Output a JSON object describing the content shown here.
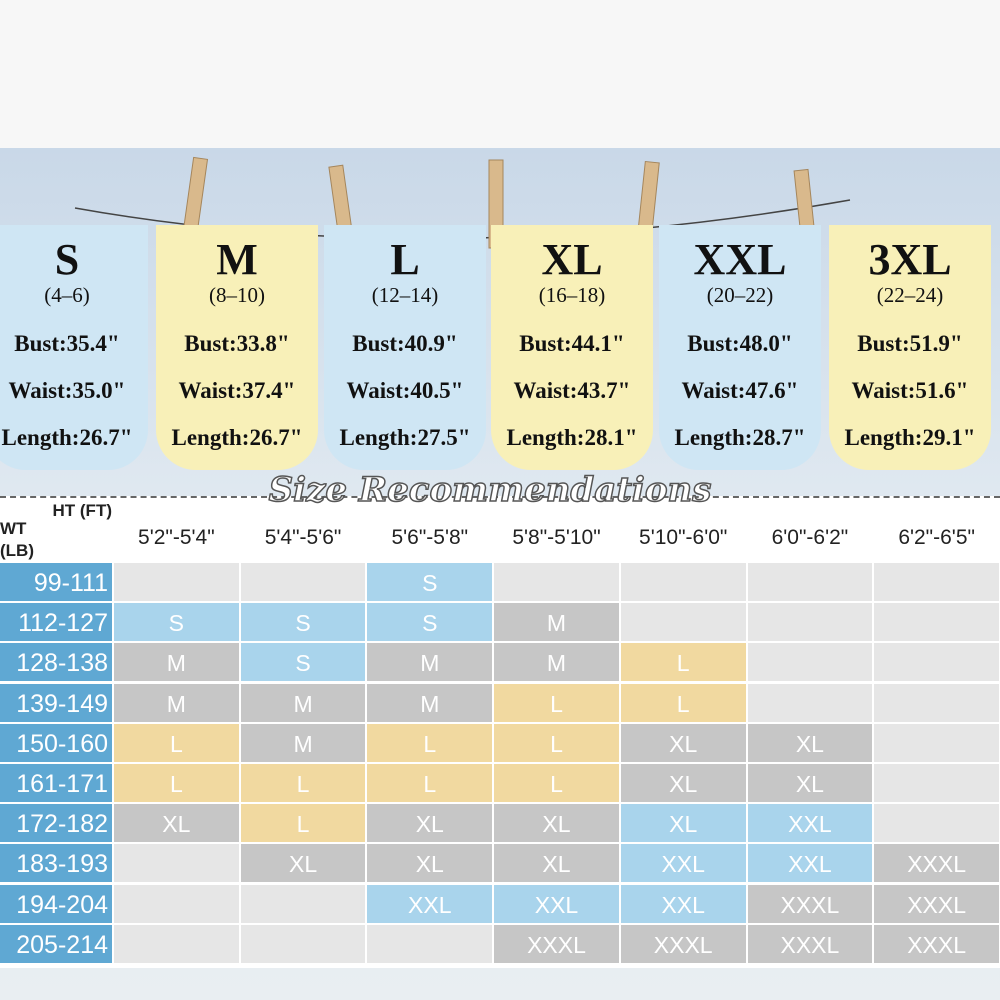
{
  "sizes": [
    {
      "label": "S",
      "range": "(4–6)",
      "bust": "Bust:35.4\"",
      "waist": "Waist:35.0\"",
      "length": "Length:26.7\"",
      "color": "#cfe6f4"
    },
    {
      "label": "M",
      "range": "(8–10)",
      "bust": "Bust:33.8\"",
      "waist": "Waist:37.4\"",
      "length": "Length:26.7\"",
      "color": "#f8f0b8"
    },
    {
      "label": "L",
      "range": "(12–14)",
      "bust": "Bust:40.9\"",
      "waist": "Waist:40.5\"",
      "length": "Length:27.5\"",
      "color": "#cfe6f4"
    },
    {
      "label": "XL",
      "range": "(16–18)",
      "bust": "Bust:44.1\"",
      "waist": "Waist:43.7\"",
      "length": "Length:28.1\"",
      "color": "#f8f0b8"
    },
    {
      "label": "XXL",
      "range": "(20–22)",
      "bust": "Bust:48.0\"",
      "waist": "Waist:47.6\"",
      "length": "Length:28.7\"",
      "color": "#cfe6f4"
    },
    {
      "label": "3XL",
      "range": "(22–24)",
      "bust": "Bust:51.9\"",
      "waist": "Waist:51.6\"",
      "length": "Length:29.1\"",
      "color": "#f8f0b8"
    }
  ],
  "table": {
    "title": "Size Recommendations",
    "height_header": "HT (FT)",
    "weight_header": "WT (LB)",
    "columns": [
      "5'2\"-5'4\"",
      "5'4\"-5'6\"",
      "5'6\"-5'8\"",
      "5'8\"-5'10\"",
      "5'10\"-6'0\"",
      "6'0\"-6'2\"",
      "6'2\"-6'5\""
    ],
    "rows": [
      {
        "weight": "99-111",
        "cells": [
          null,
          null,
          {
            "text": "S",
            "color": "#a9d4ec"
          },
          null,
          null,
          null,
          null
        ]
      },
      {
        "weight": "112-127",
        "cells": [
          {
            "text": "S",
            "color": "#a9d4ec"
          },
          {
            "text": "S",
            "color": "#a9d4ec"
          },
          {
            "text": "S",
            "color": "#a9d4ec"
          },
          {
            "text": "M",
            "color": "#c6c6c6"
          },
          null,
          null,
          null
        ]
      },
      {
        "weight": "128-138",
        "cells": [
          {
            "text": "M",
            "color": "#c6c6c6"
          },
          {
            "text": "S",
            "color": "#a9d4ec"
          },
          {
            "text": "M",
            "color": "#c6c6c6"
          },
          {
            "text": "M",
            "color": "#c6c6c6"
          },
          {
            "text": "L",
            "color": "#f1d9a0"
          },
          null,
          null
        ]
      },
      {
        "weight": "139-149",
        "cells": [
          {
            "text": "M",
            "color": "#c6c6c6"
          },
          {
            "text": "M",
            "color": "#c6c6c6"
          },
          {
            "text": "M",
            "color": "#c6c6c6"
          },
          {
            "text": "L",
            "color": "#f1d9a0"
          },
          {
            "text": "L",
            "color": "#f1d9a0"
          },
          null,
          null
        ]
      },
      {
        "weight": "150-160",
        "cells": [
          {
            "text": "L",
            "color": "#f1d9a0"
          },
          {
            "text": "M",
            "color": "#c6c6c6"
          },
          {
            "text": "L",
            "color": "#f1d9a0"
          },
          {
            "text": "L",
            "color": "#f1d9a0"
          },
          {
            "text": "XL",
            "color": "#c6c6c6"
          },
          {
            "text": "XL",
            "color": "#c6c6c6"
          },
          null
        ]
      },
      {
        "weight": "161-171",
        "cells": [
          {
            "text": "L",
            "color": "#f1d9a0"
          },
          {
            "text": "L",
            "color": "#f1d9a0"
          },
          {
            "text": "L",
            "color": "#f1d9a0"
          },
          {
            "text": "L",
            "color": "#f1d9a0"
          },
          {
            "text": "XL",
            "color": "#c6c6c6"
          },
          {
            "text": "XL",
            "color": "#c6c6c6"
          },
          null
        ]
      },
      {
        "weight": "172-182",
        "cells": [
          {
            "text": "XL",
            "color": "#c6c6c6"
          },
          {
            "text": "L",
            "color": "#f1d9a0"
          },
          {
            "text": "XL",
            "color": "#c6c6c6"
          },
          {
            "text": "XL",
            "color": "#c6c6c6"
          },
          {
            "text": "XL",
            "color": "#a9d4ec"
          },
          {
            "text": "XXL",
            "color": "#a9d4ec"
          },
          null
        ]
      },
      {
        "weight": "183-193",
        "cells": [
          null,
          {
            "text": "XL",
            "color": "#c6c6c6"
          },
          {
            "text": "XL",
            "color": "#c6c6c6"
          },
          {
            "text": "XL",
            "color": "#c6c6c6"
          },
          {
            "text": "XXL",
            "color": "#a9d4ec"
          },
          {
            "text": "XXL",
            "color": "#a9d4ec"
          },
          {
            "text": "XXXL",
            "color": "#c6c6c6"
          }
        ]
      },
      {
        "weight": "194-204",
        "cells": [
          null,
          null,
          {
            "text": "XXL",
            "color": "#a9d4ec"
          },
          {
            "text": "XXL",
            "color": "#a9d4ec"
          },
          {
            "text": "XXL",
            "color": "#a9d4ec"
          },
          {
            "text": "XXXL",
            "color": "#c6c6c6"
          },
          {
            "text": "XXXL",
            "color": "#c6c6c6"
          }
        ]
      },
      {
        "weight": "205-214",
        "cells": [
          null,
          null,
          null,
          {
            "text": "XXXL",
            "color": "#c6c6c6"
          },
          {
            "text": "XXXL",
            "color": "#c6c6c6"
          },
          {
            "text": "XXXL",
            "color": "#c6c6c6"
          },
          {
            "text": "XXXL",
            "color": "#c6c6c6"
          }
        ]
      }
    ]
  }
}
